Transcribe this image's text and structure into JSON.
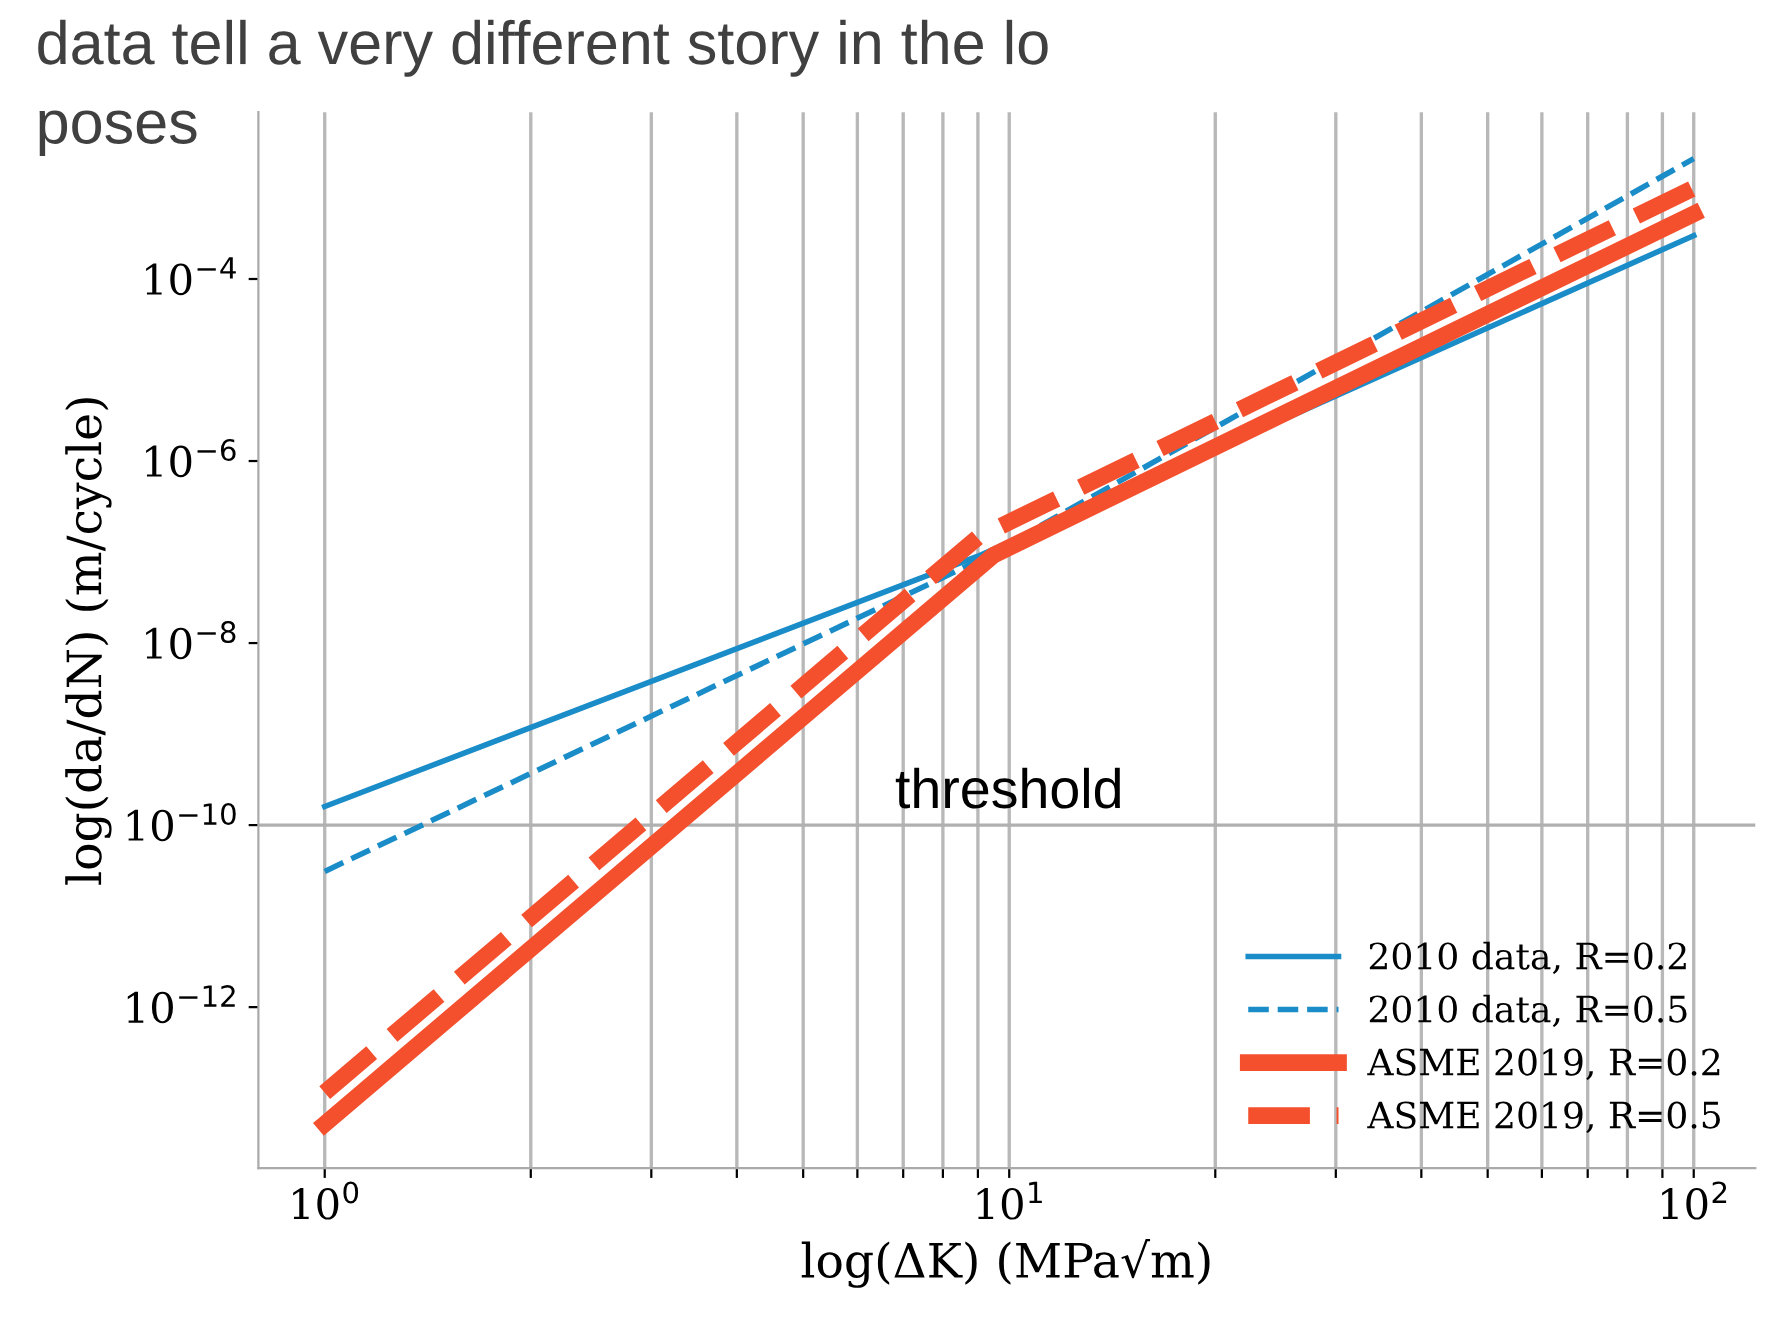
{
  "chart_data": {
    "type": "line",
    "xlabel": "log(ΔK) (MPa√m)",
    "ylabel": "log(da/dN) (m/cycle)",
    "annotations": [
      "data tell a very different story in the lo",
      "poses"
    ],
    "log": "xy",
    "xlim": [
      0.8,
      123
    ],
    "ylim": [
      1.7e-14,
      0.0068
    ],
    "xticks": [
      {
        "value": 1,
        "label": "10$^{0}$"
      },
      {
        "value": 2,
        "label": null
      },
      {
        "value": 3,
        "label": null
      },
      {
        "value": 4,
        "label": null
      },
      {
        "value": 5,
        "label": null
      },
      {
        "value": 6,
        "label": null
      },
      {
        "value": 7,
        "label": null
      },
      {
        "value": 8,
        "label": null
      },
      {
        "value": 9,
        "label": null
      },
      {
        "value": 10,
        "label": "10$^{1}$"
      },
      {
        "value": 20,
        "label": null
      },
      {
        "value": 30,
        "label": null
      },
      {
        "value": 40,
        "label": null
      },
      {
        "value": 50,
        "label": null
      },
      {
        "value": 60,
        "label": null
      },
      {
        "value": 70,
        "label": null
      },
      {
        "value": 80,
        "label": null
      },
      {
        "value": 90,
        "label": null
      },
      {
        "value": 100,
        "label": "10$^{2}$"
      }
    ],
    "yticks": [
      {
        "value": 1e-12,
        "label": "10$^{−12}$"
      },
      {
        "value": 1e-10,
        "label": "10$^{−10}$"
      },
      {
        "value": 1e-08,
        "label": "10$^{−8}$"
      },
      {
        "value": 1e-06,
        "label": "10$^{−6}$"
      },
      {
        "value": 0.0001,
        "label": "10$^{−4}$"
      }
    ],
    "grid": "x",
    "legend": "bottom right",
    "ref_lines": [
      {
        "axis": "y",
        "value": 1e-10,
        "label": "threshold",
        "color": "#b0b0b0"
      }
    ],
    "series": [
      {
        "name": "2010 data, R=0.2",
        "color": "#1a8cc8",
        "line_style": "solid",
        "x": [
          1,
          9,
          100
        ],
        "values": [
          1.6e-10,
          9e-08,
          0.0003
        ]
      },
      {
        "name": "2010 data, R=0.5",
        "color": "#1a8cc8",
        "line_style": "dashed",
        "x": [
          1,
          9,
          100
        ],
        "values": [
          3.1e-11,
          8e-08,
          0.0021
        ]
      },
      {
        "name": "ASME 2019, R=0.2",
        "color": "#f4502d",
        "line_style": "solid",
        "x": [
          1,
          9.5,
          100
        ],
        "values": [
          5.2e-14,
          9.3e-08,
          0.00052
        ]
      },
      {
        "name": "ASME 2019, R=0.5",
        "color": "#f4502d",
        "line_style": "dashed",
        "x": [
          1,
          9,
          100
        ],
        "values": [
          1.15e-13,
          1.45e-07,
          0.001
        ]
      }
    ]
  }
}
